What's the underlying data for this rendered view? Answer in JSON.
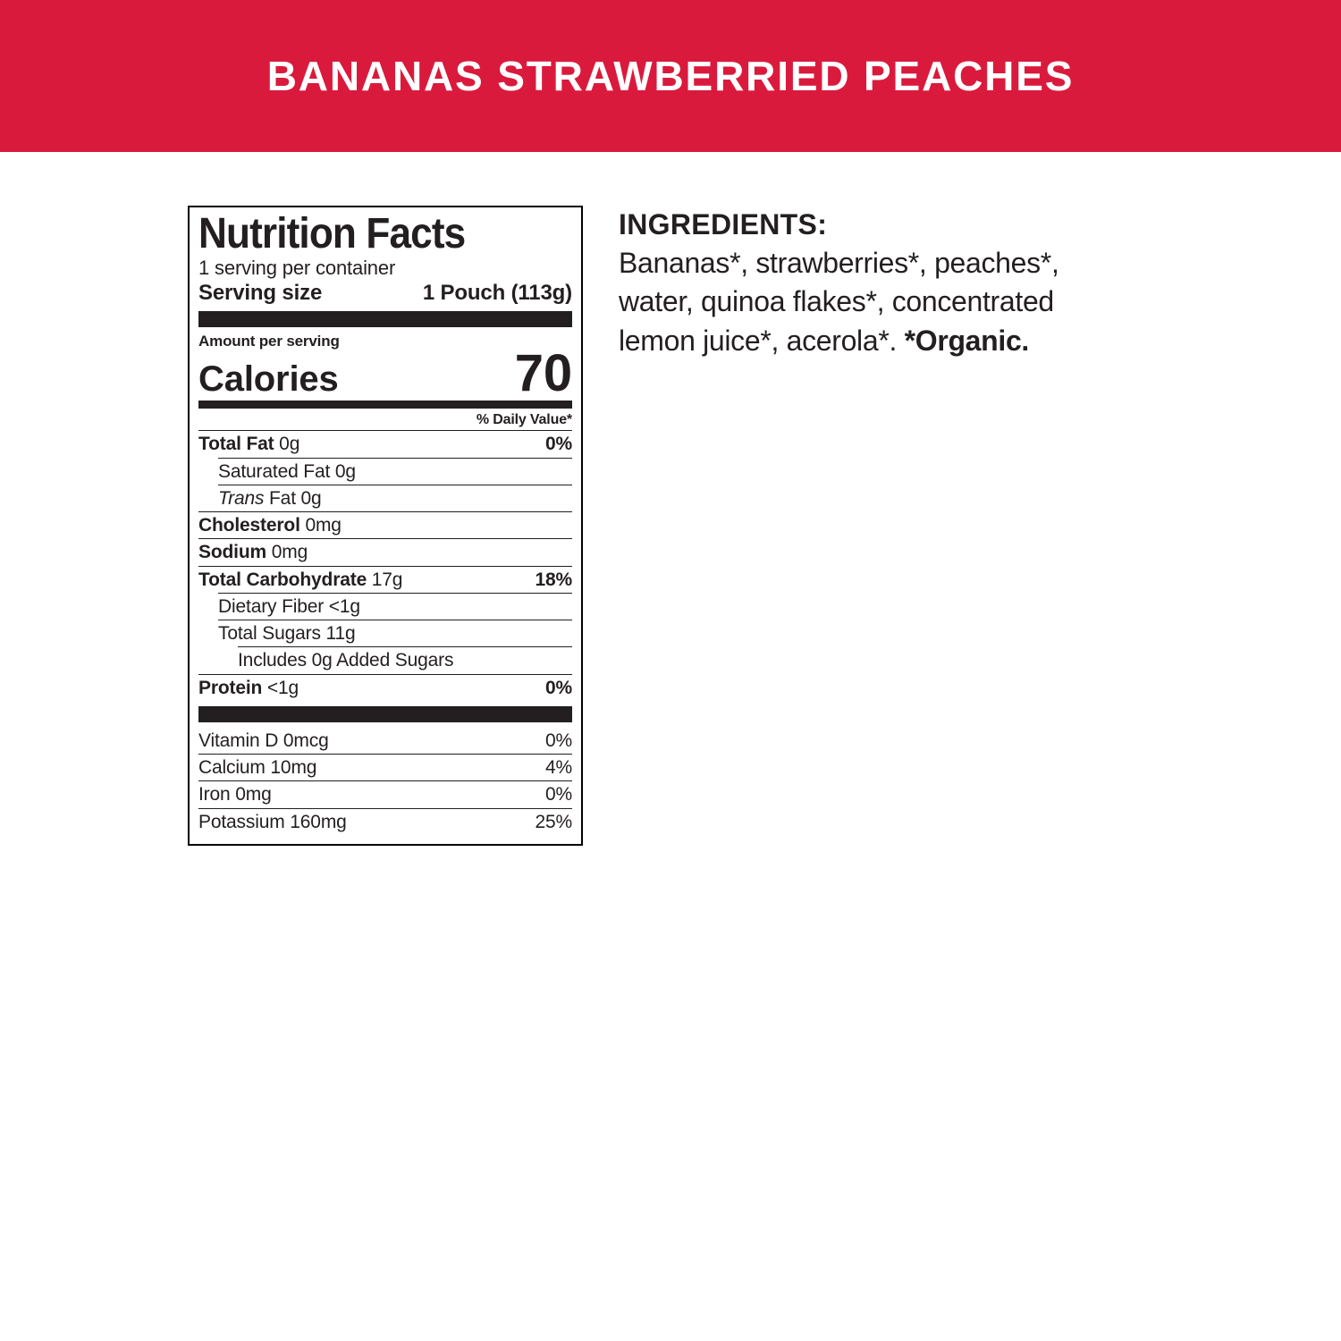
{
  "colors": {
    "banner_bg": "#da1a3c",
    "banner_text": "#ffffff",
    "panel_border": "#000000",
    "text": "#231f20"
  },
  "banner": {
    "title": "BANANAS STRAWBERRIED PEACHES"
  },
  "nutrition": {
    "title": "Nutrition Facts",
    "servings": "1 serving per container",
    "serving_size_label": "Serving size",
    "serving_size_value": "1 Pouch (113g)",
    "amount_label": "Amount per serving",
    "calories_label": "Calories",
    "calories_value": "70",
    "dv_header": "% Daily Value*",
    "main": [
      {
        "bold": "Total Fat",
        "amount": "0g",
        "dv": "0%"
      },
      {
        "sub": 1,
        "label": "Saturated Fat",
        "amount": "0g"
      },
      {
        "sub": 1,
        "italic": "Trans",
        "post": " Fat",
        "amount": "0g"
      },
      {
        "bold": "Cholesterol",
        "amount": "0mg"
      },
      {
        "bold": "Sodium",
        "amount": "0mg"
      },
      {
        "bold": "Total Carbohydrate",
        "amount": "17g",
        "dv": "18%"
      },
      {
        "sub": 1,
        "label": "Dietary Fiber",
        "amount": "<1g"
      },
      {
        "sub": 1,
        "label": "Total Sugars",
        "amount": "11g"
      },
      {
        "sub": 2,
        "label": "Includes 0g Added Sugars"
      },
      {
        "bold": "Protein",
        "amount": "<1g",
        "dv": "0%"
      }
    ],
    "vitamins": [
      {
        "label": "Vitamin D",
        "amount": "0mcg",
        "dv": "0%"
      },
      {
        "label": "Calcium",
        "amount": "10mg",
        "dv": "4%"
      },
      {
        "label": "Iron",
        "amount": "0mg",
        "dv": "0%"
      },
      {
        "label": "Potassium",
        "amount": "160mg",
        "dv": "25%"
      }
    ]
  },
  "ingredients": {
    "header": "INGREDIENTS:",
    "text": "Bananas*, strawberries*, peaches*, water, quinoa flakes*, concentrated lemon juice*, acerola*. ",
    "note": "*Organic."
  }
}
